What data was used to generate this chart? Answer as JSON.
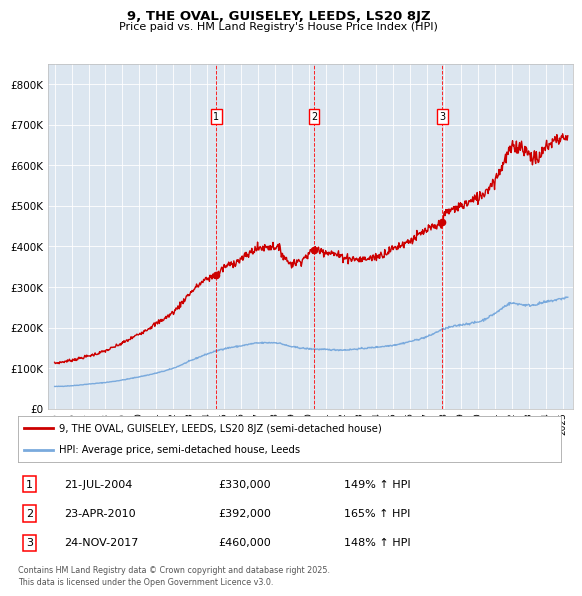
{
  "title": "9, THE OVAL, GUISELEY, LEEDS, LS20 8JZ",
  "subtitle": "Price paid vs. HM Land Registry's House Price Index (HPI)",
  "plot_bg_color": "#dce6f0",
  "ylabel_ticks": [
    "£0",
    "£100K",
    "£200K",
    "£300K",
    "£400K",
    "£500K",
    "£600K",
    "£700K",
    "£800K"
  ],
  "ytick_values": [
    0,
    100000,
    200000,
    300000,
    400000,
    500000,
    600000,
    700000,
    800000
  ],
  "ylim": [
    0,
    850000
  ],
  "xlim_start": 1994.6,
  "xlim_end": 2025.6,
  "xticks": [
    1995,
    1996,
    1997,
    1998,
    1999,
    2000,
    2001,
    2002,
    2003,
    2004,
    2005,
    2006,
    2007,
    2008,
    2009,
    2010,
    2011,
    2012,
    2013,
    2014,
    2015,
    2016,
    2017,
    2018,
    2019,
    2020,
    2021,
    2022,
    2023,
    2024,
    2025
  ],
  "sales": [
    {
      "date_num": 2004.55,
      "price": 330000,
      "label": "1"
    },
    {
      "date_num": 2010.31,
      "price": 392000,
      "label": "2"
    },
    {
      "date_num": 2017.9,
      "price": 460000,
      "label": "3"
    }
  ],
  "sale_dates_text": [
    "21-JUL-2004",
    "23-APR-2010",
    "24-NOV-2017"
  ],
  "sale_prices_text": [
    "£330,000",
    "£392,000",
    "£460,000"
  ],
  "sale_hpi_text": [
    "149% ↑ HPI",
    "165% ↑ HPI",
    "148% ↑ HPI"
  ],
  "legend_property": "9, THE OVAL, GUISELEY, LEEDS, LS20 8JZ (semi-detached house)",
  "legend_hpi": "HPI: Average price, semi-detached house, Leeds",
  "footer": "Contains HM Land Registry data © Crown copyright and database right 2025.\nThis data is licensed under the Open Government Licence v3.0.",
  "line_color_property": "#cc0000",
  "line_color_hpi": "#7aaadd"
}
